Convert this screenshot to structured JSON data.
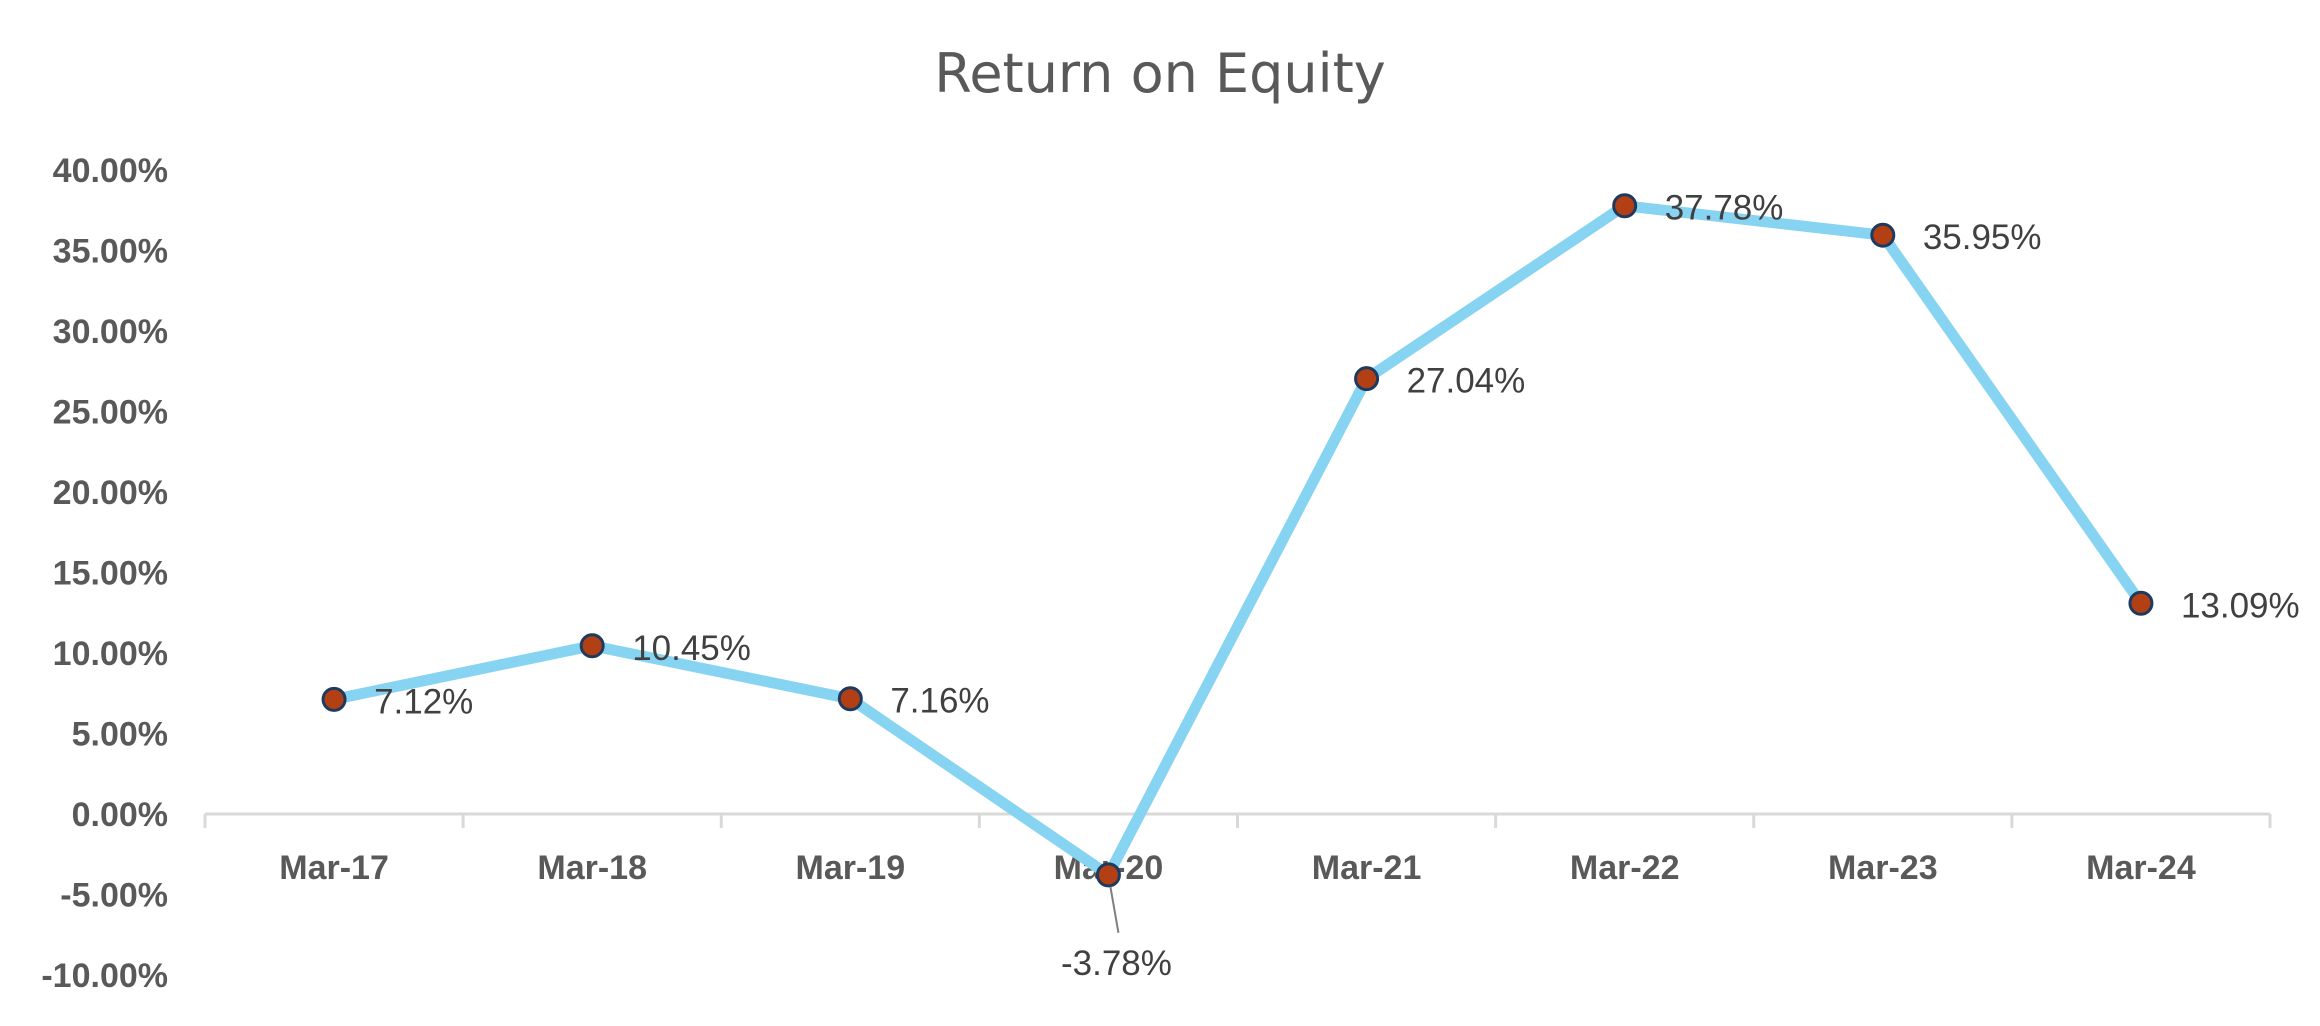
{
  "chart_data": {
    "type": "line",
    "title": "Return on Equity",
    "xlabel": "",
    "ylabel": "",
    "categories": [
      "Mar-17",
      "Mar-18",
      "Mar-19",
      "Mar-20",
      "Mar-21",
      "Mar-22",
      "Mar-23",
      "Mar-24"
    ],
    "values": [
      7.12,
      10.45,
      7.16,
      -3.78,
      27.04,
      37.78,
      35.95,
      13.09
    ],
    "data_labels": [
      "7.12%",
      "10.45%",
      "7.16%",
      "-3.78%",
      "27.04%",
      "37.78%",
      "35.95%",
      "13.09%"
    ],
    "ylim": [
      -10,
      40
    ],
    "ytick_values": [
      40,
      35,
      30,
      25,
      20,
      15,
      10,
      5,
      0,
      -5,
      -10
    ],
    "ytick_labels": [
      "40.00%",
      "35.00%",
      "30.00%",
      "25.00%",
      "20.00%",
      "15.00%",
      "10.00%",
      "5.00%",
      "0.00%",
      "-5.00%",
      "-10.00%"
    ],
    "grid": false,
    "legend": "none",
    "colors": {
      "line": "#87D3F2",
      "marker_fill": "#B33F14",
      "marker_stroke": "#1F3A5F",
      "axis": "#D9D9D9",
      "text": "#595959"
    }
  }
}
